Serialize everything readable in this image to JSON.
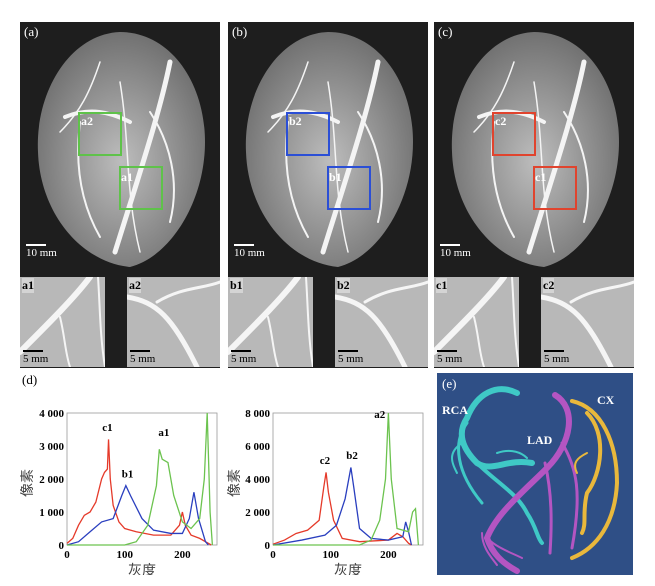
{
  "panels": [
    {
      "label": "(a)",
      "box1": "a2",
      "box2": "a1",
      "color": "#5fc24a",
      "scale": "10 mm",
      "insets": [
        {
          "label": "a1",
          "scale": "5 mm"
        },
        {
          "label": "a2",
          "scale": "5 mm"
        }
      ]
    },
    {
      "label": "(b)",
      "box1": "b2",
      "box2": "b1",
      "color": "#2b4fd6",
      "scale": "10 mm",
      "insets": [
        {
          "label": "b1",
          "scale": "5 mm"
        },
        {
          "label": "b2",
          "scale": "5 mm"
        }
      ]
    },
    {
      "label": "(c)",
      "box1": "c2",
      "box2": "c1",
      "color": "#e0442e",
      "scale": "10 mm",
      "insets": [
        {
          "label": "c1",
          "scale": "5 mm"
        },
        {
          "label": "c2",
          "scale": "5 mm"
        }
      ]
    }
  ],
  "panel_d_label": "(d)",
  "panel_e": {
    "label": "(e)",
    "rca": "RCA",
    "lad": "LAD",
    "cx": "CX",
    "colors": {
      "rca": "#3fc9c6",
      "lad": "#b455c2",
      "cx": "#e9b83c",
      "bg": "#2f4f86"
    }
  },
  "chart_data": [
    {
      "type": "line",
      "xlabel": "灰度",
      "ylabel": "像素",
      "xlim": [
        0,
        260
      ],
      "ylim": [
        0,
        4000
      ],
      "xticks": [
        "0",
        "100",
        "200"
      ],
      "yticks": [
        "0",
        "1 000",
        "2 000",
        "3 000",
        "4 000"
      ],
      "series": [
        {
          "name": "c1",
          "color": "#e53a2a",
          "x": [
            0,
            10,
            20,
            30,
            40,
            50,
            60,
            65,
            70,
            72,
            75,
            80,
            90,
            100,
            120,
            150,
            180,
            195,
            200,
            205,
            215,
            230,
            245,
            250
          ],
          "y": [
            50,
            200,
            600,
            900,
            1000,
            1300,
            2000,
            2200,
            2300,
            3200,
            2000,
            1200,
            700,
            500,
            400,
            300,
            300,
            600,
            1000,
            600,
            300,
            200,
            50,
            0
          ],
          "label_pos": [
            70,
            3450
          ]
        },
        {
          "name": "b1",
          "color": "#2a3fbf",
          "x": [
            0,
            20,
            40,
            60,
            80,
            95,
            102,
            110,
            130,
            150,
            180,
            200,
            212,
            220,
            228,
            240,
            245
          ],
          "y": [
            0,
            100,
            400,
            700,
            800,
            1500,
            1800,
            1500,
            800,
            450,
            350,
            350,
            800,
            1600,
            800,
            100,
            0
          ],
          "label_pos": [
            105,
            2050
          ]
        },
        {
          "name": "a1",
          "color": "#6cc34f",
          "x": [
            0,
            100,
            120,
            140,
            155,
            160,
            165,
            175,
            185,
            200,
            215,
            230,
            238,
            243,
            248,
            252
          ],
          "y": [
            0,
            0,
            100,
            600,
            1800,
            2900,
            2600,
            2500,
            1500,
            700,
            500,
            800,
            2000,
            4000,
            1000,
            0
          ],
          "label_pos": [
            168,
            3300
          ]
        }
      ]
    },
    {
      "type": "line",
      "xlabel": "灰度",
      "ylabel": "像素",
      "xlim": [
        0,
        260
      ],
      "ylim": [
        0,
        8000
      ],
      "xticks": [
        "0",
        "100",
        "200"
      ],
      "yticks": [
        "0",
        "2 000",
        "4 000",
        "6 000",
        "8 000"
      ],
      "series": [
        {
          "name": "c2",
          "color": "#e53a2a",
          "x": [
            0,
            20,
            40,
            60,
            80,
            88,
            92,
            96,
            105,
            120,
            150,
            200,
            215,
            225,
            235,
            240
          ],
          "y": [
            50,
            300,
            700,
            900,
            1500,
            3500,
            4400,
            3200,
            1500,
            400,
            200,
            300,
            700,
            500,
            100,
            0
          ],
          "label_pos": [
            90,
            4900
          ]
        },
        {
          "name": "b2",
          "color": "#2a3fbf",
          "x": [
            0,
            50,
            90,
            110,
            125,
            135,
            140,
            150,
            170,
            200,
            225,
            230,
            235,
            240
          ],
          "y": [
            0,
            300,
            600,
            1200,
            2800,
            4700,
            3500,
            1000,
            400,
            300,
            500,
            1400,
            800,
            0
          ],
          "label_pos": [
            137,
            5200
          ]
        },
        {
          "name": "a2",
          "color": "#6cc34f",
          "x": [
            0,
            150,
            170,
            185,
            195,
            200,
            205,
            215,
            235,
            242,
            247,
            252
          ],
          "y": [
            0,
            0,
            300,
            1500,
            4000,
            8000,
            4000,
            1000,
            800,
            2000,
            2200,
            0
          ],
          "label_pos": [
            185,
            7700
          ]
        }
      ]
    }
  ]
}
